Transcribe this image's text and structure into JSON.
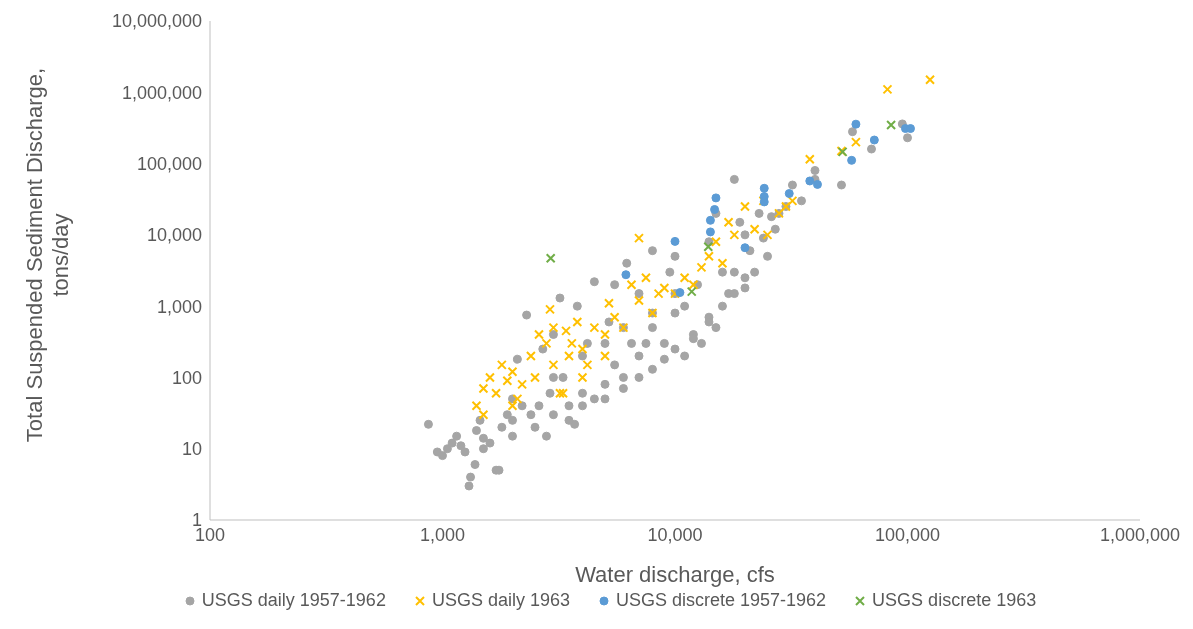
{
  "chart_data": {
    "type": "scatter",
    "xlabel": "Water discharge, cfs",
    "ylabel": "Total Suspended Sediment Discharge, tons/day",
    "log": "xy",
    "grid": false,
    "legend": "bottom",
    "xlim": [
      100,
      1000000
    ],
    "xticks": [
      {
        "value": 100,
        "label": "100"
      },
      {
        "value": 1000,
        "label": "1,000"
      },
      {
        "value": 10000,
        "label": "10,000"
      },
      {
        "value": 100000,
        "label": "100,000"
      },
      {
        "value": 1000000,
        "label": "1,000,000"
      }
    ],
    "ylim": [
      1,
      10000000
    ],
    "yticks": [
      {
        "value": 1,
        "label": "1"
      },
      {
        "value": 10,
        "label": "10"
      },
      {
        "value": 100,
        "label": "100"
      },
      {
        "value": 1000,
        "label": "1,000"
      },
      {
        "value": 10000,
        "label": "10,000"
      },
      {
        "value": 100000,
        "label": "100,000"
      },
      {
        "value": 1000000,
        "label": "1,000,000"
      },
      {
        "value": 10000000,
        "label": "10,000,000"
      }
    ],
    "series": [
      {
        "name": "USGS daily 1957-1962",
        "color": "#a5a5a5",
        "marker": "circle",
        "x": [
          870,
          950,
          1000,
          1050,
          1100,
          1150,
          1200,
          1250,
          1300,
          1320,
          1380,
          1400,
          1450,
          1500,
          1600,
          1700,
          1750,
          1800,
          1900,
          2000,
          2100,
          2200,
          2300,
          2400,
          2600,
          2700,
          2800,
          2900,
          3000,
          3200,
          3300,
          3500,
          3700,
          3800,
          4000,
          4200,
          4500,
          4500,
          5000,
          5200,
          5500,
          5500,
          6000,
          6200,
          6500,
          7000,
          7000,
          7500,
          8000,
          8000,
          9000,
          9500,
          10000,
          10000,
          11000,
          11000,
          12000,
          12500,
          13000,
          14000,
          14000,
          15000,
          15000,
          16000,
          17000,
          18000,
          18000,
          19000,
          20000,
          20000,
          21000,
          22000,
          23000,
          24000,
          25000,
          26000,
          27000,
          28000,
          30000,
          32000,
          35000,
          40000,
          40000,
          52000,
          58000,
          70000,
          95000,
          100000,
          1500,
          2000,
          2500,
          3000,
          3500,
          4000,
          5000,
          6000,
          7000,
          8000,
          9000,
          10000,
          12000,
          14000,
          16000,
          18000,
          20000,
          2000,
          3000,
          4000,
          5000,
          6000,
          8000,
          10000
        ],
        "values": [
          22,
          9,
          8,
          10,
          12,
          15,
          11,
          9,
          3,
          4,
          6,
          18,
          25,
          14,
          12,
          5,
          5,
          20,
          30,
          25,
          180,
          40,
          750,
          30,
          40,
          250,
          15,
          60,
          400,
          1300,
          100,
          40,
          22,
          1000,
          60,
          300,
          2200,
          50,
          80,
          600,
          150,
          2000,
          100,
          4000,
          300,
          200,
          1500,
          300,
          6000,
          500,
          300,
          3000,
          5000,
          800,
          200,
          1000,
          400,
          2000,
          300,
          700,
          8000,
          500,
          20000,
          3000,
          1500,
          60000,
          3000,
          15000,
          1800,
          10000,
          6000,
          3000,
          20000,
          9000,
          5000,
          18000,
          12000,
          20000,
          25000,
          50000,
          30000,
          60000,
          80000,
          50000,
          280000,
          160000,
          360000,
          230000,
          10,
          15,
          20,
          30,
          25,
          40,
          50,
          70,
          100,
          130,
          180,
          250,
          350,
          600,
          1000,
          1500,
          2500,
          50,
          100,
          200,
          300,
          500,
          800,
          1500
        ]
      },
      {
        "name": "USGS daily 1963",
        "color": "#ffc000",
        "marker": "cross",
        "x": [
          1400,
          1500,
          1600,
          1700,
          1800,
          1900,
          2000,
          2100,
          2200,
          2400,
          2600,
          2800,
          2900,
          3000,
          3200,
          3400,
          3500,
          3600,
          3800,
          4000,
          4200,
          4500,
          5000,
          5200,
          5500,
          6000,
          6500,
          7000,
          7000,
          7500,
          8000,
          8500,
          9000,
          10000,
          11000,
          12000,
          13000,
          14000,
          15000,
          16000,
          17000,
          18000,
          20000,
          22000,
          24000,
          25000,
          28000,
          30000,
          32000,
          38000,
          52000,
          60000,
          82000,
          125000,
          1500,
          2000,
          2500,
          3000,
          4000,
          5000,
          3300
        ],
        "values": [
          40,
          70,
          100,
          60,
          150,
          90,
          120,
          50,
          80,
          200,
          400,
          300,
          900,
          150,
          60,
          450,
          200,
          300,
          600,
          250,
          150,
          500,
          400,
          1100,
          700,
          500,
          2000,
          9000,
          1200,
          2500,
          800,
          1500,
          1800,
          1500,
          2500,
          2000,
          3500,
          5000,
          8000,
          4000,
          15000,
          10000,
          25000,
          12000,
          30000,
          10000,
          20000,
          25000,
          30000,
          115000,
          150000,
          200000,
          1100000,
          1500000,
          30,
          40,
          100,
          500,
          100,
          200,
          60
        ]
      },
      {
        "name": "USGS discrete 1957-1962",
        "color": "#5b9bd5",
        "marker": "circle",
        "x": [
          6150,
          10000,
          10500,
          14200,
          14200,
          14800,
          15000,
          20000,
          24200,
          24200,
          24200,
          31000,
          38000,
          41000,
          57500,
          60000,
          72000,
          98000,
          103000
        ],
        "values": [
          2760,
          8100,
          1550,
          11000,
          16000,
          22700,
          33000,
          6600,
          45000,
          34500,
          29000,
          38000,
          57000,
          51000,
          111000,
          357000,
          214000,
          310000,
          310000
        ]
      },
      {
        "name": "USGS discrete 1963",
        "color": "#70ad47",
        "marker": "cross",
        "x": [
          2920,
          11800,
          13900,
          52600,
          85000
        ],
        "values": [
          4700,
          1600,
          6800,
          146000,
          347000
        ]
      }
    ]
  }
}
